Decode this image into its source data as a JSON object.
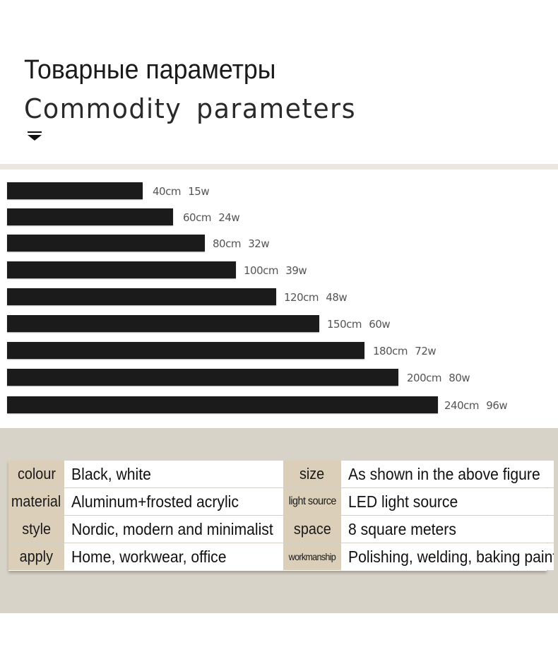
{
  "header": {
    "title_ru": "Товарные параметры",
    "title_en": "Commodity  parameters",
    "arrow_icon": "down-arrow-icon"
  },
  "bars": [
    {
      "length": "40cm",
      "power": "15w"
    },
    {
      "length": "60cm",
      "power": "24w"
    },
    {
      "length": "80cm",
      "power": "32w"
    },
    {
      "length": "100cm",
      "power": "39w"
    },
    {
      "length": "120cm",
      "power": "48w"
    },
    {
      "length": "150cm",
      "power": "60w"
    },
    {
      "length": "180cm",
      "power": "72w"
    },
    {
      "length": "200cm",
      "power": "80w"
    },
    {
      "length": "240cm",
      "power": "96w"
    }
  ],
  "specs": [
    {
      "key1": "colour",
      "val1": "Black, white",
      "key2": "size",
      "val2": "As shown in the above figure"
    },
    {
      "key1": "material",
      "val1": "Aluminum+frosted acrylic",
      "key2": "light source",
      "val2": "LED light source"
    },
    {
      "key1": "style",
      "val1": "Nordic, modern and minimalist",
      "key2": "space",
      "val2": "8 square meters"
    },
    {
      "key1": "apply",
      "val1": "Home, workwear, office",
      "key2": "workmanship",
      "val2": "Polishing, welding, baking paint"
    }
  ],
  "colors": {
    "bar": "#1b1b1b",
    "key_cell": "#dccfb9",
    "specs_background": "#d8d3c8"
  }
}
